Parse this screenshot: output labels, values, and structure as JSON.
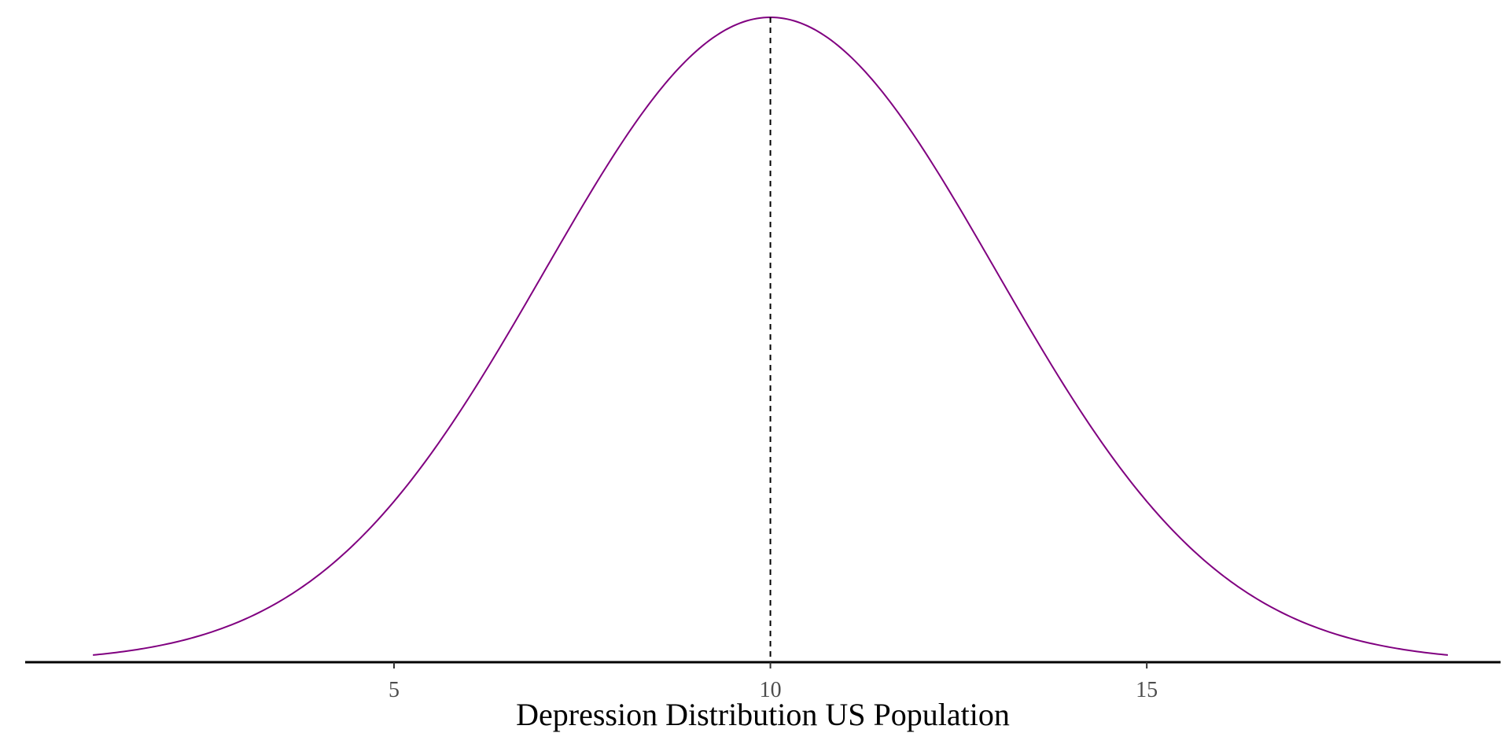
{
  "chart_data": {
    "type": "line",
    "title": "",
    "xlabel": "Depression Distribution US Population",
    "ylabel": "",
    "xlim": [
      0.1,
      19.7
    ],
    "x_ticks": [
      5,
      10,
      15
    ],
    "x_tick_labels": [
      "5",
      "10",
      "15"
    ],
    "curve": {
      "distribution": "normal",
      "mean": 10,
      "sd": 3,
      "x_range": [
        1,
        19
      ]
    },
    "reference_line": {
      "x": 10,
      "style": "dashed"
    },
    "grid": false,
    "legend": "none",
    "colors": {
      "curve": "#800080",
      "reference": "#000000",
      "axis": "#000000"
    }
  }
}
